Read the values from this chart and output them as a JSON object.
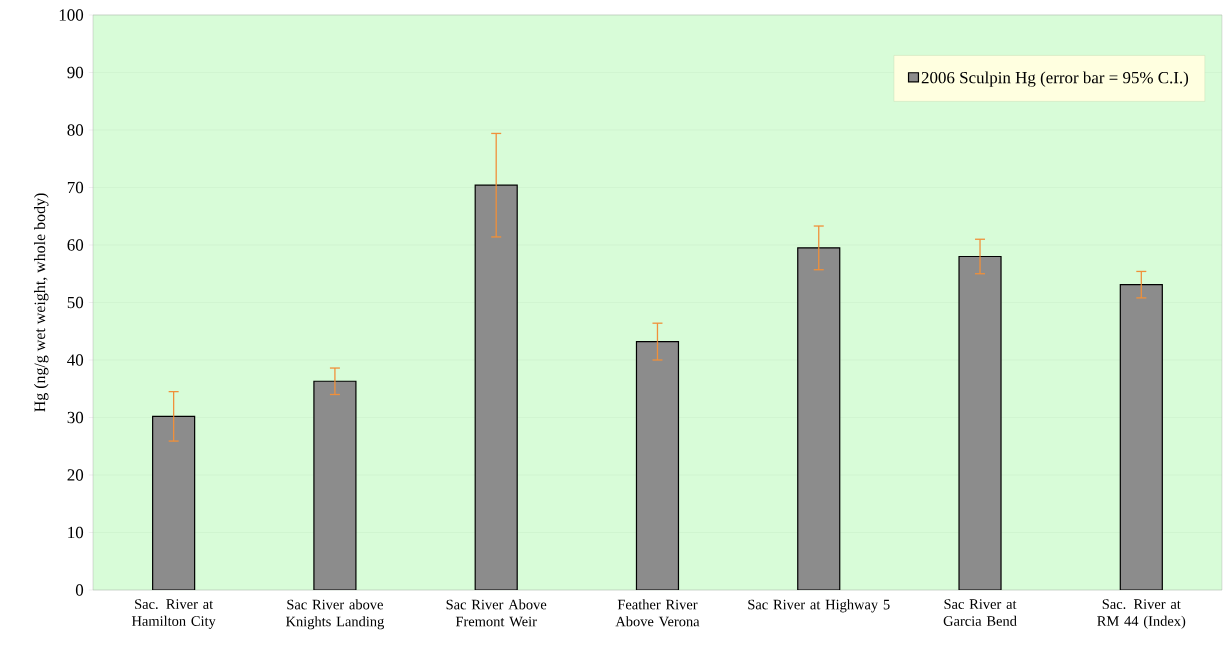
{
  "chart_data": {
    "type": "bar",
    "ylabel": "Hg (ng/g wet weight, whole body)",
    "categories": [
      "Sac. River at Hamilton City",
      "Sac River above Knights Landing",
      "Sac River Above Fremont Weir",
      "Feather River Above Verona",
      "Sac River at Highway 5",
      "Sac River at Garcia Bend",
      "Sac. River at RM 44 (Index)"
    ],
    "series": [
      {
        "name": "2006 Sculpin Hg (error bar = 95% C.I.)",
        "color": "#8c8c8c",
        "values": [
          30.2,
          36.3,
          70.4,
          43.2,
          59.5,
          58.0,
          53.1
        ],
        "errors": [
          4.3,
          2.3,
          9.0,
          3.2,
          3.8,
          3.0,
          2.3
        ]
      }
    ],
    "ylim": [
      0,
      100
    ],
    "yticks": [
      0,
      10,
      20,
      30,
      40,
      50,
      60,
      70,
      80,
      90,
      100
    ],
    "grid": "y",
    "legend": "top right"
  }
}
